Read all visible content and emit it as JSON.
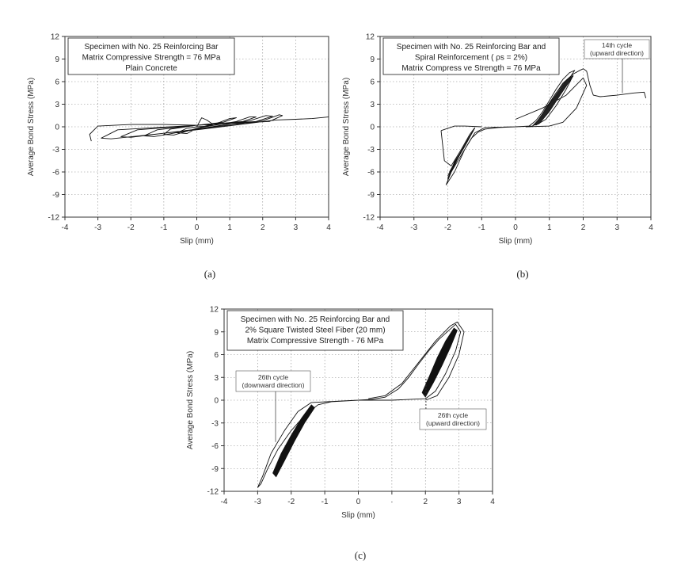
{
  "chart_data": [
    {
      "id": "a",
      "type": "line",
      "caption": "(a)",
      "xlabel": "Slip (mm)",
      "ylabel": "Average Bond Stress (MPa)",
      "xlim": [
        -4,
        4
      ],
      "ylim": [
        -12,
        12
      ],
      "xticks": [
        -4,
        -3,
        -2,
        -1,
        0,
        1,
        2,
        3,
        4
      ],
      "yticks": [
        12,
        9,
        6,
        3,
        0,
        -3,
        -6,
        -9,
        -12
      ],
      "grid": true,
      "legend_box": [
        "Specimen with No. 25 Reinforcing Bar",
        "Matrix Compressive Strength = 76 MPa",
        "Plain Concrete"
      ],
      "annotations": [],
      "series": [
        {
          "values": [
            [
              0,
              0
            ],
            [
              0.15,
              1.2
            ],
            [
              0.3,
              0.9
            ],
            [
              0.5,
              0.3
            ],
            [
              0.35,
              0.1
            ],
            [
              0,
              0
            ],
            [
              -0.3,
              -0.2
            ],
            [
              -0.6,
              -0.8
            ],
            [
              -0.3,
              -0.9
            ],
            [
              0,
              -0.2
            ],
            [
              0.7,
              0.6
            ],
            [
              1.0,
              1.1
            ],
            [
              1.2,
              1.2
            ],
            [
              0.8,
              0.6
            ],
            [
              0,
              0.2
            ],
            [
              -0.8,
              -0.3
            ],
            [
              -1.0,
              -1.0
            ],
            [
              -0.7,
              -1.1
            ],
            [
              0,
              -0.2
            ],
            [
              1.2,
              0.7
            ],
            [
              1.6,
              1.3
            ],
            [
              1.8,
              1.3
            ],
            [
              1.4,
              0.7
            ],
            [
              0,
              0.2
            ],
            [
              -1.2,
              -0.4
            ],
            [
              -1.6,
              -1.2
            ],
            [
              -1.3,
              -1.3
            ],
            [
              0,
              -0.3
            ],
            [
              1.6,
              0.8
            ],
            [
              2.1,
              1.5
            ],
            [
              2.3,
              1.4
            ],
            [
              1.8,
              0.7
            ],
            [
              0,
              0.2
            ],
            [
              -1.8,
              -0.4
            ],
            [
              -2.3,
              -1.3
            ],
            [
              -2.0,
              -1.4
            ],
            [
              0,
              -0.3
            ],
            [
              2.0,
              0.8
            ],
            [
              2.5,
              1.6
            ],
            [
              2.6,
              1.5
            ],
            [
              2.2,
              0.7
            ],
            [
              0,
              0.2
            ],
            [
              -2.4,
              -0.4
            ],
            [
              -2.9,
              -1.5
            ],
            [
              -2.6,
              -1.6
            ],
            [
              0,
              -0.4
            ],
            [
              2.4,
              0.9
            ],
            [
              3.0,
              1.0
            ],
            [
              3.5,
              1.1
            ],
            [
              4.0,
              1.3
            ]
          ]
        },
        {
          "values": [
            [
              -3.2,
              -1.9
            ],
            [
              -3.25,
              -1.0
            ],
            [
              -3.0,
              0.1
            ],
            [
              -2.5,
              0.2
            ],
            [
              -2.0,
              0.3
            ],
            [
              -1.0,
              0.3
            ],
            [
              0,
              0.2
            ]
          ]
        }
      ]
    },
    {
      "id": "b",
      "type": "line",
      "caption": "(b)",
      "xlabel": "Slip (mm)",
      "ylabel": "Average Bond Stress (MPa)",
      "xlim": [
        -4,
        4
      ],
      "ylim": [
        -12,
        12
      ],
      "xticks": [
        -4,
        -3,
        -2,
        -1,
        0,
        1,
        2,
        3,
        4
      ],
      "yticks": [
        12,
        9,
        6,
        3,
        0,
        -3,
        -6,
        -9,
        -12
      ],
      "grid": true,
      "legend_box": [
        "Specimen with No. 25 Reinforcing Bar and",
        "Spiral Reinforcement ( ρs = 2%)",
        "Matrix Compress ve Strength = 76 MPa"
      ],
      "annotations": [
        "14th cycle",
        "(upward direction)"
      ],
      "series": [
        {
          "values": [
            [
              0,
              0
            ],
            [
              0.4,
              0.1
            ],
            [
              0.6,
              0.8
            ],
            [
              0.8,
              2.0
            ],
            [
              1.0,
              3.5
            ],
            [
              1.2,
              5.0
            ],
            [
              1.4,
              6.3
            ],
            [
              1.6,
              7.2
            ],
            [
              1.75,
              7.5
            ],
            [
              1.6,
              6.5
            ],
            [
              1.2,
              3.5
            ],
            [
              0.8,
              1.0
            ],
            [
              0.5,
              0.1
            ],
            [
              0,
              0
            ],
            [
              -0.5,
              -0.1
            ],
            [
              -0.9,
              -0.3
            ],
            [
              -1.1,
              -0.7
            ],
            [
              -1.3,
              -1.5
            ],
            [
              -1.5,
              -3.0
            ],
            [
              -1.7,
              -4.5
            ],
            [
              -1.9,
              -6.0
            ],
            [
              -2.05,
              -7.7
            ],
            [
              -1.8,
              -6.0
            ],
            [
              -1.5,
              -3.0
            ],
            [
              -1.2,
              -0.8
            ],
            [
              -0.9,
              -0.1
            ],
            [
              0,
              0
            ],
            [
              0.5,
              0.1
            ],
            [
              0.8,
              1.5
            ],
            [
              1.1,
              3.8
            ],
            [
              1.4,
              5.8
            ],
            [
              1.7,
              7.0
            ],
            [
              1.9,
              7.5
            ],
            [
              2.0,
              7.7
            ],
            [
              2.1,
              7.4
            ],
            [
              2.2,
              5.5
            ],
            [
              2.3,
              4.2
            ],
            [
              2.5,
              4.0
            ],
            [
              3.0,
              4.2
            ],
            [
              3.5,
              4.5
            ],
            [
              3.8,
              4.6
            ],
            [
              3.85,
              3.8
            ]
          ]
        },
        {
          "values": [
            [
              0.6,
              0.2
            ],
            [
              0.9,
              2.5
            ],
            [
              1.2,
              4.5
            ],
            [
              1.5,
              6.2
            ],
            [
              1.7,
              6.8
            ],
            [
              1.5,
              5.0
            ],
            [
              1.2,
              2.8
            ],
            [
              0.9,
              1.0
            ],
            [
              0.6,
              0.2
            ]
          ]
        },
        {
          "values": [
            [
              0,
              1.0
            ],
            [
              0.8,
              2.5
            ],
            [
              1.5,
              4.2
            ],
            [
              2.0,
              6.5
            ],
            [
              2.1,
              5.5
            ],
            [
              1.8,
              2.5
            ],
            [
              1.4,
              0.6
            ],
            [
              1.0,
              0.1
            ],
            [
              0.3,
              0.0
            ]
          ]
        },
        {
          "values": [
            [
              -2.2,
              -0.5
            ],
            [
              -2.1,
              -4.5
            ],
            [
              -1.9,
              -5.2
            ],
            [
              -1.6,
              -3.0
            ],
            [
              -1.35,
              -1.0
            ],
            [
              -1.2,
              -0.1
            ]
          ]
        },
        {
          "values": [
            [
              -2.0,
              -6.5
            ],
            [
              -1.8,
              -4.8
            ],
            [
              -1.6,
              -3.2
            ],
            [
              -1.4,
              -1.6
            ],
            [
              -1.25,
              -0.5
            ],
            [
              -1.5,
              -2.6
            ],
            [
              -1.75,
              -4.4
            ],
            [
              -1.95,
              -6.0
            ]
          ]
        },
        {
          "values": [
            [
              -2.2,
              -0.5
            ],
            [
              -1.8,
              0.1
            ],
            [
              -1.5,
              0.1
            ],
            [
              -1.0,
              0.0
            ]
          ]
        }
      ]
    },
    {
      "id": "c",
      "type": "line",
      "caption": "(c)",
      "xlabel": "Slip (mm)",
      "ylabel": "Average Bond Stress (MPa)",
      "xlim": [
        -4,
        4
      ],
      "ylim": [
        -12,
        12
      ],
      "xticks": [
        -4,
        -3,
        -2,
        -1,
        0,
        1,
        2,
        3,
        4
      ],
      "xtick_labels": [
        "-4",
        "-3",
        "-2",
        "-1",
        "0",
        "·",
        "2",
        "3",
        "4"
      ],
      "yticks": [
        12,
        9,
        6,
        3,
        0,
        -3,
        -6,
        -9,
        -12
      ],
      "grid": true,
      "legend_box": [
        "Specimen with No. 25 Reinforcing Bar and",
        "2% Square Twisted Steel Fiber (20 mm)",
        "Matrix Compressive Strength - 76 MPa"
      ],
      "annotations": [
        "26th cycle",
        "(downward direction)",
        "26th cycle",
        "(upward direction)"
      ],
      "series": [
        {
          "values": [
            [
              0,
              0
            ],
            [
              0.4,
              0.1
            ],
            [
              0.8,
              0.4
            ],
            [
              1.2,
              1.5
            ],
            [
              1.5,
              3.0
            ],
            [
              1.8,
              4.8
            ],
            [
              2.1,
              6.5
            ],
            [
              2.4,
              8.0
            ],
            [
              2.7,
              9.2
            ],
            [
              2.9,
              10.0
            ],
            [
              3.05,
              9.0
            ],
            [
              2.9,
              6.5
            ],
            [
              2.6,
              3.5
            ],
            [
              2.3,
              1.2
            ],
            [
              2.0,
              0.2
            ],
            [
              1.0,
              0.0
            ],
            [
              0,
              0
            ],
            [
              -0.8,
              -0.2
            ],
            [
              -1.2,
              -0.6
            ],
            [
              -1.6,
              -2.0
            ],
            [
              -2.0,
              -4.0
            ],
            [
              -2.4,
              -6.5
            ],
            [
              -2.7,
              -9.0
            ],
            [
              -2.9,
              -11.0
            ],
            [
              -3.0,
              -11.5
            ],
            [
              -2.85,
              -10.0
            ],
            [
              -2.6,
              -7.0
            ],
            [
              -2.2,
              -4.0
            ],
            [
              -1.8,
              -1.5
            ],
            [
              -1.4,
              -0.3
            ],
            [
              0,
              0
            ]
          ]
        },
        {
          "values": [
            [
              0.3,
              0.2
            ],
            [
              0.8,
              0.6
            ],
            [
              1.3,
              2.2
            ],
            [
              1.8,
              5.0
            ],
            [
              2.3,
              7.8
            ],
            [
              2.75,
              9.8
            ],
            [
              2.95,
              10.3
            ],
            [
              3.15,
              9.0
            ],
            [
              3.0,
              6.0
            ],
            [
              2.7,
              3.0
            ],
            [
              2.35,
              0.6
            ],
            [
              2.0,
              0.0
            ]
          ]
        }
      ]
    }
  ]
}
